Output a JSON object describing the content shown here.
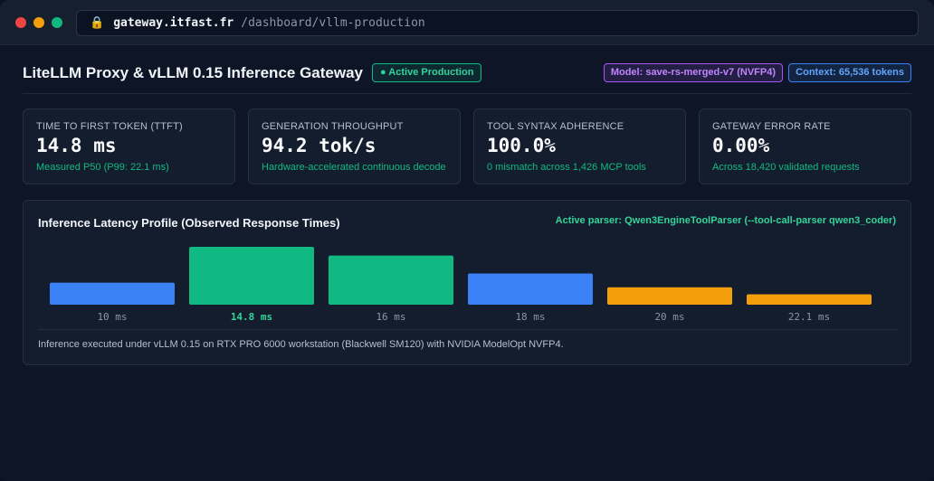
{
  "browser": {
    "lock_icon": "🔒",
    "domain": "gateway.itfast.fr",
    "path": "/dashboard/vllm-production"
  },
  "header": {
    "title": "LiteLLM Proxy & vLLM 0.15 Inference Gateway",
    "status": "● Active Production",
    "model": "Model: save-rs-merged-v7 (NVFP4)",
    "context": "Context: 65,536 tokens"
  },
  "cards": [
    {
      "label": "TIME TO FIRST TOKEN (TTFT)",
      "value": "14.8 ms",
      "sub": "Measured P50 (P99: 22.1 ms)"
    },
    {
      "label": "GENERATION THROUGHPUT",
      "value": "94.2 tok/s",
      "sub": "Hardware-accelerated continuous decode"
    },
    {
      "label": "TOOL SYNTAX ADHERENCE",
      "value": "100.0%",
      "sub": "0 mismatch across 1,426 MCP tools"
    },
    {
      "label": "GATEWAY ERROR RATE",
      "value": "0.00%",
      "sub": "Across 18,420 validated requests"
    }
  ],
  "chart_panel": {
    "title": "Inference Latency Profile (Observed Response Times)",
    "parser": "Active parser: Qwen3EngineToolParser (--tool-call-parser qwen3_coder)",
    "footnote": "Inference executed under vLLM 0.15 on RTX PRO 6000 workstation (Blackwell SM120) with NVIDIA ModelOpt NVFP4."
  },
  "colors": {
    "blue": "#3b82f6",
    "green": "#10b981",
    "orange": "#f59e0b",
    "label": "#8b96a8",
    "highlight": "#34d399"
  },
  "chart_data": {
    "type": "bar",
    "categories": [
      "10 ms",
      "14.8 ms",
      "16 ms",
      "18 ms",
      "20 ms",
      "22.1 ms"
    ],
    "values": [
      0.38,
      1.0,
      0.85,
      0.54,
      0.3,
      0.18
    ],
    "bar_colors": [
      "blue",
      "green",
      "green",
      "blue",
      "orange",
      "orange"
    ],
    "highlight_index": 1,
    "title": "Inference Latency Profile (Observed Response Times)",
    "xlabel": "",
    "ylabel": "",
    "ylim": [
      0,
      1
    ]
  }
}
